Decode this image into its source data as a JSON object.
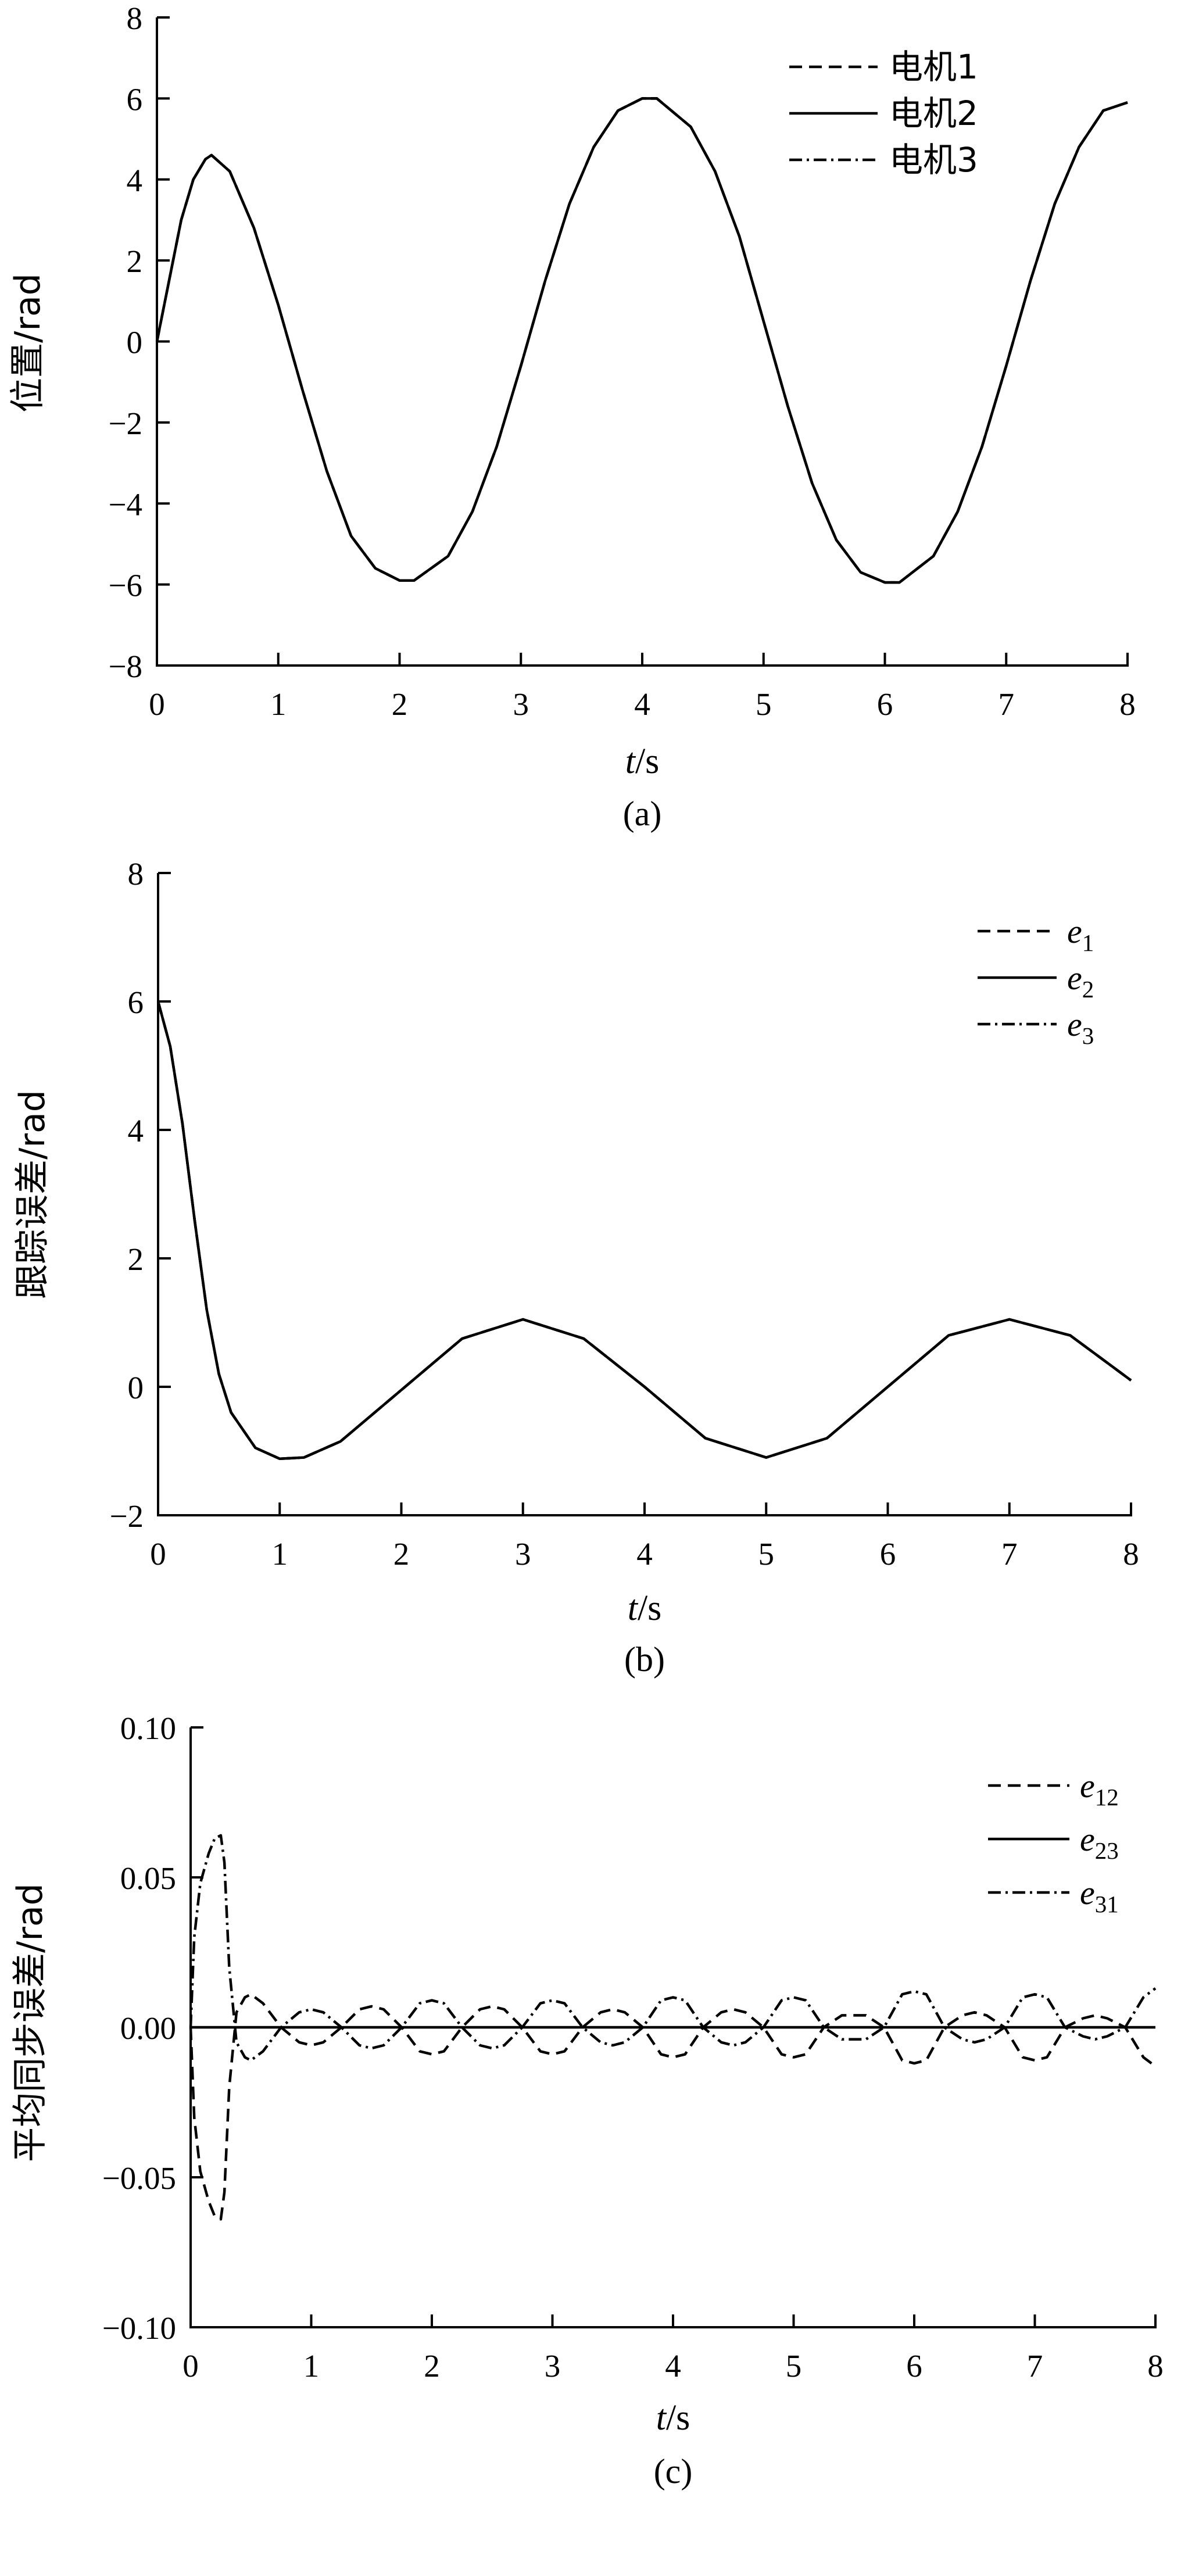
{
  "chart_data": [
    {
      "panel_label": "(a)",
      "type": "line",
      "xlabel": {
        "italic": "t",
        "rest": "/s"
      },
      "ylabel": "位置/rad",
      "xlim": [
        0,
        8
      ],
      "ylim": [
        -8,
        8
      ],
      "xticks": [
        0,
        1,
        2,
        3,
        4,
        5,
        6,
        7,
        8
      ],
      "yticks": [
        -8,
        -6,
        -4,
        -2,
        0,
        2,
        4,
        6,
        8
      ],
      "xtick_labels": [
        "0",
        "1",
        "2",
        "3",
        "4",
        "5",
        "6",
        "7",
        "8"
      ],
      "ytick_labels": [
        "−8",
        "−6",
        "−4",
        "−2",
        "0",
        "2",
        "4",
        "6",
        "8"
      ],
      "grid": false,
      "legend_position": "top-right",
      "legend": [
        {
          "text": "电机1",
          "style": "dashed"
        },
        {
          "text": "电机2",
          "style": "solid"
        },
        {
          "text": "电机3",
          "style": "dashdot"
        }
      ],
      "series": [
        {
          "name": "电机1",
          "style": "dashed",
          "x": [
            0,
            0.1,
            0.2,
            0.3,
            0.4,
            0.45,
            0.6,
            0.8,
            1.0,
            1.2,
            1.4,
            1.6,
            1.8,
            2.0,
            2.12,
            2.4,
            2.6,
            2.8,
            3.0,
            3.2,
            3.4,
            3.6,
            3.8,
            4.0,
            4.12,
            4.4,
            4.6,
            4.8,
            5.0,
            5.2,
            5.4,
            5.6,
            5.8,
            6.0,
            6.12,
            6.4,
            6.6,
            6.8,
            7.0,
            7.2,
            7.4,
            7.6,
            7.8,
            8.0
          ],
          "y": [
            0,
            1.5,
            3.0,
            4.0,
            4.5,
            4.6,
            4.2,
            2.8,
            0.9,
            -1.2,
            -3.2,
            -4.8,
            -5.6,
            -5.9,
            -5.9,
            -5.3,
            -4.2,
            -2.6,
            -0.6,
            1.5,
            3.4,
            4.8,
            5.7,
            6.0,
            6.0,
            5.3,
            4.2,
            2.6,
            0.5,
            -1.6,
            -3.5,
            -4.9,
            -5.7,
            -5.95,
            -5.95,
            -5.3,
            -4.2,
            -2.6,
            -0.6,
            1.5,
            3.4,
            4.8,
            5.7,
            5.9
          ]
        },
        {
          "name": "电机2",
          "style": "solid",
          "x": [
            0,
            0.1,
            0.2,
            0.3,
            0.4,
            0.45,
            0.6,
            0.8,
            1.0,
            1.2,
            1.4,
            1.6,
            1.8,
            2.0,
            2.12,
            2.4,
            2.6,
            2.8,
            3.0,
            3.2,
            3.4,
            3.6,
            3.8,
            4.0,
            4.12,
            4.4,
            4.6,
            4.8,
            5.0,
            5.2,
            5.4,
            5.6,
            5.8,
            6.0,
            6.12,
            6.4,
            6.6,
            6.8,
            7.0,
            7.2,
            7.4,
            7.6,
            7.8,
            8.0
          ],
          "y": [
            0,
            1.5,
            3.0,
            4.0,
            4.5,
            4.6,
            4.2,
            2.8,
            0.9,
            -1.2,
            -3.2,
            -4.8,
            -5.6,
            -5.9,
            -5.9,
            -5.3,
            -4.2,
            -2.6,
            -0.6,
            1.5,
            3.4,
            4.8,
            5.7,
            6.0,
            6.0,
            5.3,
            4.2,
            2.6,
            0.5,
            -1.6,
            -3.5,
            -4.9,
            -5.7,
            -5.95,
            -5.95,
            -5.3,
            -4.2,
            -2.6,
            -0.6,
            1.5,
            3.4,
            4.8,
            5.7,
            5.9
          ]
        },
        {
          "name": "电机3",
          "style": "dashdot",
          "x": [
            0,
            0.1,
            0.2,
            0.3,
            0.4,
            0.45,
            0.6,
            0.8,
            1.0,
            1.2,
            1.4,
            1.6,
            1.8,
            2.0,
            2.12,
            2.4,
            2.6,
            2.8,
            3.0,
            3.2,
            3.4,
            3.6,
            3.8,
            4.0,
            4.12,
            4.4,
            4.6,
            4.8,
            5.0,
            5.2,
            5.4,
            5.6,
            5.8,
            6.0,
            6.12,
            6.4,
            6.6,
            6.8,
            7.0,
            7.2,
            7.4,
            7.6,
            7.8,
            8.0
          ],
          "y": [
            0,
            1.5,
            3.0,
            4.0,
            4.5,
            4.6,
            4.2,
            2.8,
            0.9,
            -1.2,
            -3.2,
            -4.8,
            -5.6,
            -5.9,
            -5.9,
            -5.3,
            -4.2,
            -2.6,
            -0.6,
            1.5,
            3.4,
            4.8,
            5.7,
            6.0,
            6.0,
            5.3,
            4.2,
            2.6,
            0.5,
            -1.6,
            -3.5,
            -4.9,
            -5.7,
            -5.95,
            -5.95,
            -5.3,
            -4.2,
            -2.6,
            -0.6,
            1.5,
            3.4,
            4.8,
            5.7,
            5.9
          ]
        }
      ]
    },
    {
      "panel_label": "(b)",
      "type": "line",
      "xlabel": {
        "italic": "t",
        "rest": "/s"
      },
      "ylabel": "跟踪误差/rad",
      "xlim": [
        0,
        8
      ],
      "ylim": [
        -2,
        8
      ],
      "xticks": [
        0,
        1,
        2,
        3,
        4,
        5,
        6,
        7,
        8
      ],
      "yticks": [
        -2,
        0,
        2,
        4,
        6,
        8
      ],
      "xtick_labels": [
        "0",
        "1",
        "2",
        "3",
        "4",
        "5",
        "6",
        "7",
        "8"
      ],
      "ytick_labels": [
        "−2",
        "0",
        "2",
        "4",
        "6",
        "8"
      ],
      "grid": false,
      "legend_position": "top-right",
      "legend": [
        {
          "text": "e",
          "sub": "1",
          "style": "dashed"
        },
        {
          "text": "e",
          "sub": "2",
          "style": "solid"
        },
        {
          "text": "e",
          "sub": "3",
          "style": "dashdot"
        }
      ],
      "series": [
        {
          "name": "e1",
          "style": "dashed",
          "x": [
            0,
            0.1,
            0.2,
            0.3,
            0.4,
            0.5,
            0.6,
            0.8,
            1.0,
            1.2,
            1.5,
            2.0,
            2.5,
            3.0,
            3.5,
            4.0,
            4.5,
            5.0,
            5.5,
            6.0,
            6.5,
            7.0,
            7.5,
            8.0
          ],
          "y": [
            6.0,
            5.3,
            4.1,
            2.6,
            1.2,
            0.2,
            -0.4,
            -0.95,
            -1.12,
            -1.1,
            -0.85,
            -0.05,
            0.75,
            1.05,
            0.75,
            0.0,
            -0.8,
            -1.1,
            -0.8,
            0.0,
            0.8,
            1.05,
            0.8,
            0.1
          ]
        },
        {
          "name": "e2",
          "style": "solid",
          "x": [
            0,
            0.1,
            0.2,
            0.3,
            0.4,
            0.5,
            0.6,
            0.8,
            1.0,
            1.2,
            1.5,
            2.0,
            2.5,
            3.0,
            3.5,
            4.0,
            4.5,
            5.0,
            5.5,
            6.0,
            6.5,
            7.0,
            7.5,
            8.0
          ],
          "y": [
            6.0,
            5.3,
            4.1,
            2.6,
            1.2,
            0.2,
            -0.4,
            -0.95,
            -1.12,
            -1.1,
            -0.85,
            -0.05,
            0.75,
            1.05,
            0.75,
            0.0,
            -0.8,
            -1.1,
            -0.8,
            0.0,
            0.8,
            1.05,
            0.8,
            0.1
          ]
        },
        {
          "name": "e3",
          "style": "dashdot",
          "x": [
            0,
            0.1,
            0.2,
            0.3,
            0.4,
            0.5,
            0.6,
            0.8,
            1.0,
            1.2,
            1.5,
            2.0,
            2.5,
            3.0,
            3.5,
            4.0,
            4.5,
            5.0,
            5.5,
            6.0,
            6.5,
            7.0,
            7.5,
            8.0
          ],
          "y": [
            6.0,
            5.3,
            4.1,
            2.6,
            1.2,
            0.2,
            -0.4,
            -0.95,
            -1.12,
            -1.1,
            -0.85,
            -0.05,
            0.75,
            1.05,
            0.75,
            0.0,
            -0.8,
            -1.1,
            -0.8,
            0.0,
            0.8,
            1.05,
            0.8,
            0.1
          ]
        }
      ]
    },
    {
      "panel_label": "(c)",
      "type": "line",
      "xlabel": {
        "italic": "t",
        "rest": "/s"
      },
      "ylabel": "平均同步误差/rad",
      "xlim": [
        0,
        8
      ],
      "ylim": [
        -0.1,
        0.1
      ],
      "xticks": [
        0,
        1,
        2,
        3,
        4,
        5,
        6,
        7,
        8
      ],
      "yticks": [
        -0.1,
        -0.05,
        0,
        0.05,
        0.1
      ],
      "xtick_labels": [
        "0",
        "1",
        "2",
        "3",
        "4",
        "5",
        "6",
        "7",
        "8"
      ],
      "ytick_labels": [
        "−0.10",
        "−0.05",
        "0.00",
        "0.05",
        "0.10"
      ],
      "grid": false,
      "legend_position": "top-right",
      "legend": [
        {
          "text": "e",
          "sub": "12",
          "style": "dashed"
        },
        {
          "text": "e",
          "sub": "23",
          "style": "solid"
        },
        {
          "text": "e",
          "sub": "31",
          "style": "dashdot"
        }
      ],
      "series": [
        {
          "name": "e12",
          "style": "dashed",
          "x": [
            0,
            0.03,
            0.08,
            0.15,
            0.2,
            0.25,
            0.28,
            0.32,
            0.38,
            0.45,
            0.5,
            0.6,
            0.75,
            0.9,
            1.0,
            1.1,
            1.25,
            1.4,
            1.5,
            1.6,
            1.75,
            1.9,
            2.0,
            2.1,
            2.25,
            2.4,
            2.5,
            2.6,
            2.75,
            2.9,
            3.0,
            3.1,
            3.25,
            3.4,
            3.5,
            3.6,
            3.75,
            3.9,
            4.0,
            4.1,
            4.25,
            4.4,
            4.5,
            4.6,
            4.75,
            4.9,
            5.0,
            5.1,
            5.25,
            5.4,
            5.5,
            5.6,
            5.75,
            5.9,
            6.0,
            6.1,
            6.25,
            6.4,
            6.5,
            6.6,
            6.75,
            6.9,
            7.0,
            7.1,
            7.25,
            7.4,
            7.5,
            7.6,
            7.75,
            7.9,
            8.0
          ],
          "y": [
            0,
            -0.03,
            -0.048,
            -0.058,
            -0.063,
            -0.064,
            -0.055,
            -0.02,
            0.005,
            0.01,
            0.011,
            0.008,
            0.0,
            -0.005,
            -0.006,
            -0.005,
            0.0,
            0.006,
            0.007,
            0.006,
            0.0,
            -0.008,
            -0.009,
            -0.008,
            0.0,
            0.006,
            0.007,
            0.006,
            0.0,
            -0.008,
            -0.009,
            -0.008,
            0.0,
            0.005,
            0.006,
            0.005,
            0.0,
            -0.009,
            -0.01,
            -0.009,
            0.0,
            0.005,
            0.006,
            0.005,
            0.0,
            -0.009,
            -0.01,
            -0.009,
            0.0,
            0.004,
            0.004,
            0.004,
            0.0,
            -0.011,
            -0.012,
            -0.011,
            0.0,
            0.004,
            0.005,
            0.004,
            0.0,
            -0.01,
            -0.011,
            -0.01,
            0.0,
            0.003,
            0.004,
            0.003,
            0.0,
            -0.01,
            -0.013
          ]
        },
        {
          "name": "e23",
          "style": "solid",
          "x": [
            0,
            8
          ],
          "y": [
            0,
            0
          ]
        },
        {
          "name": "e31",
          "style": "dashdot",
          "x": [
            0,
            0.03,
            0.08,
            0.15,
            0.2,
            0.25,
            0.28,
            0.32,
            0.38,
            0.45,
            0.5,
            0.6,
            0.75,
            0.9,
            1.0,
            1.1,
            1.25,
            1.4,
            1.5,
            1.6,
            1.75,
            1.9,
            2.0,
            2.1,
            2.25,
            2.4,
            2.5,
            2.6,
            2.75,
            2.9,
            3.0,
            3.1,
            3.25,
            3.4,
            3.5,
            3.6,
            3.75,
            3.9,
            4.0,
            4.1,
            4.25,
            4.4,
            4.5,
            4.6,
            4.75,
            4.9,
            5.0,
            5.1,
            5.25,
            5.4,
            5.5,
            5.6,
            5.75,
            5.9,
            6.0,
            6.1,
            6.25,
            6.4,
            6.5,
            6.6,
            6.75,
            6.9,
            7.0,
            7.1,
            7.25,
            7.4,
            7.5,
            7.6,
            7.75,
            7.9,
            8.0
          ],
          "y": [
            0,
            0.03,
            0.048,
            0.058,
            0.063,
            0.064,
            0.055,
            0.02,
            -0.005,
            -0.01,
            -0.011,
            -0.008,
            0.0,
            0.005,
            0.006,
            0.005,
            0.0,
            -0.006,
            -0.007,
            -0.006,
            0.0,
            0.008,
            0.009,
            0.008,
            0.0,
            -0.006,
            -0.007,
            -0.006,
            0.0,
            0.008,
            0.009,
            0.008,
            0.0,
            -0.005,
            -0.006,
            -0.005,
            0.0,
            0.009,
            0.01,
            0.009,
            0.0,
            -0.005,
            -0.006,
            -0.005,
            0.0,
            0.009,
            0.01,
            0.009,
            0.0,
            -0.004,
            -0.004,
            -0.004,
            0.0,
            0.011,
            0.012,
            0.011,
            0.0,
            -0.004,
            -0.005,
            -0.004,
            0.0,
            0.01,
            0.011,
            0.01,
            0.0,
            -0.003,
            -0.004,
            -0.003,
            0.0,
            0.01,
            0.013
          ]
        }
      ]
    }
  ]
}
